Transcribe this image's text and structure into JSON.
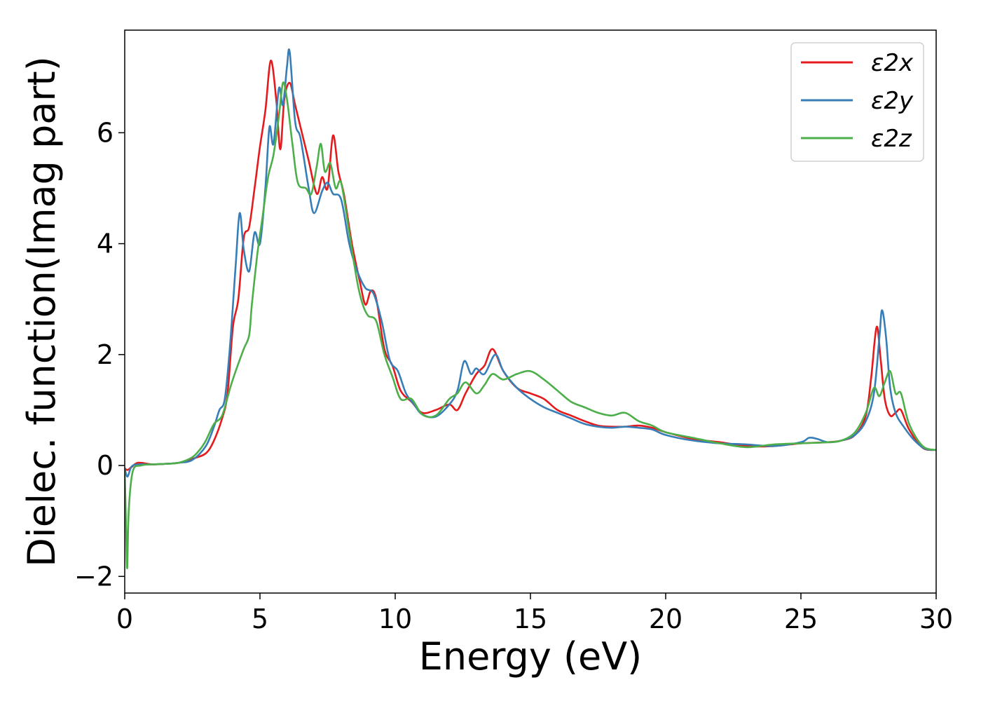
{
  "chart_data": {
    "type": "line",
    "title": "",
    "xlabel": "Energy (eV)",
    "ylabel": "Dielec. function(Imag part)",
    "xlim": [
      0,
      30
    ],
    "ylim": [
      -2.3,
      7.85
    ],
    "xticks": [
      0,
      5,
      10,
      15,
      20,
      25,
      30
    ],
    "xtick_labels": [
      "0",
      "5",
      "10",
      "15",
      "20",
      "25",
      "30"
    ],
    "yticks": [
      -2,
      0,
      2,
      4,
      6
    ],
    "ytick_labels": [
      "−2",
      "0",
      "2",
      "4",
      "6"
    ],
    "grid": false,
    "legend_position": "top-right",
    "series": [
      {
        "name": "ε2x",
        "color": "#e41a1c",
        "points": [
          [
            0,
            -0.05
          ],
          [
            0.1,
            -0.08
          ],
          [
            0.25,
            -0.03
          ],
          [
            0.5,
            0.05
          ],
          [
            1.0,
            0.02
          ],
          [
            1.5,
            0.03
          ],
          [
            2.0,
            0.05
          ],
          [
            2.5,
            0.12
          ],
          [
            3.0,
            0.22
          ],
          [
            3.3,
            0.45
          ],
          [
            3.6,
            0.85
          ],
          [
            3.8,
            1.3
          ],
          [
            4.0,
            2.5
          ],
          [
            4.2,
            3.0
          ],
          [
            4.4,
            4.1
          ],
          [
            4.6,
            4.3
          ],
          [
            4.8,
            5.0
          ],
          [
            5.0,
            5.75
          ],
          [
            5.2,
            6.4
          ],
          [
            5.4,
            7.3
          ],
          [
            5.6,
            6.6
          ],
          [
            5.75,
            5.7
          ],
          [
            5.9,
            6.6
          ],
          [
            6.1,
            6.9
          ],
          [
            6.3,
            6.5
          ],
          [
            6.5,
            6.1
          ],
          [
            6.8,
            5.5
          ],
          [
            7.1,
            4.9
          ],
          [
            7.3,
            5.2
          ],
          [
            7.5,
            5.0
          ],
          [
            7.7,
            5.95
          ],
          [
            7.9,
            5.3
          ],
          [
            8.1,
            4.9
          ],
          [
            8.4,
            4.0
          ],
          [
            8.7,
            3.3
          ],
          [
            8.9,
            2.9
          ],
          [
            9.1,
            3.15
          ],
          [
            9.3,
            3.0
          ],
          [
            9.6,
            2.1
          ],
          [
            9.9,
            1.8
          ],
          [
            10.2,
            1.35
          ],
          [
            10.6,
            1.15
          ],
          [
            11.0,
            0.95
          ],
          [
            11.5,
            1.0
          ],
          [
            12.0,
            1.1
          ],
          [
            12.3,
            1.0
          ],
          [
            12.6,
            1.3
          ],
          [
            13.0,
            1.65
          ],
          [
            13.3,
            1.8
          ],
          [
            13.6,
            2.1
          ],
          [
            14.0,
            1.7
          ],
          [
            14.5,
            1.4
          ],
          [
            15.0,
            1.3
          ],
          [
            15.5,
            1.2
          ],
          [
            16.0,
            1.0
          ],
          [
            16.5,
            0.9
          ],
          [
            17.0,
            0.8
          ],
          [
            17.5,
            0.72
          ],
          [
            18.0,
            0.7
          ],
          [
            18.5,
            0.7
          ],
          [
            19.0,
            0.72
          ],
          [
            19.5,
            0.68
          ],
          [
            20.0,
            0.6
          ],
          [
            21.0,
            0.48
          ],
          [
            22.0,
            0.42
          ],
          [
            23.0,
            0.35
          ],
          [
            24.0,
            0.35
          ],
          [
            25.0,
            0.4
          ],
          [
            26.0,
            0.42
          ],
          [
            26.5,
            0.45
          ],
          [
            27.0,
            0.55
          ],
          [
            27.4,
            0.9
          ],
          [
            27.6,
            1.6
          ],
          [
            27.8,
            2.5
          ],
          [
            27.95,
            1.9
          ],
          [
            28.1,
            1.2
          ],
          [
            28.3,
            0.9
          ],
          [
            28.5,
            0.95
          ],
          [
            28.7,
            1.0
          ],
          [
            29.0,
            0.65
          ],
          [
            29.5,
            0.32
          ],
          [
            30.0,
            0.28
          ]
        ]
      },
      {
        "name": "ε2y",
        "color": "#377eb8",
        "points": [
          [
            0,
            -0.05
          ],
          [
            0.1,
            -0.2
          ],
          [
            0.25,
            -0.02
          ],
          [
            0.5,
            0.02
          ],
          [
            1.0,
            0.02
          ],
          [
            1.5,
            0.03
          ],
          [
            2.0,
            0.05
          ],
          [
            2.5,
            0.1
          ],
          [
            3.0,
            0.35
          ],
          [
            3.3,
            0.7
          ],
          [
            3.5,
            1.0
          ],
          [
            3.7,
            1.2
          ],
          [
            3.9,
            2.2
          ],
          [
            4.1,
            3.6
          ],
          [
            4.25,
            4.55
          ],
          [
            4.4,
            3.9
          ],
          [
            4.6,
            3.5
          ],
          [
            4.8,
            4.2
          ],
          [
            5.0,
            4.0
          ],
          [
            5.2,
            5.0
          ],
          [
            5.35,
            6.1
          ],
          [
            5.5,
            5.8
          ],
          [
            5.7,
            6.8
          ],
          [
            5.85,
            6.5
          ],
          [
            6.0,
            7.2
          ],
          [
            6.1,
            7.45
          ],
          [
            6.3,
            6.2
          ],
          [
            6.5,
            5.9
          ],
          [
            6.8,
            5.0
          ],
          [
            7.0,
            4.55
          ],
          [
            7.3,
            4.95
          ],
          [
            7.5,
            5.1
          ],
          [
            7.7,
            4.9
          ],
          [
            8.0,
            4.8
          ],
          [
            8.3,
            4.0
          ],
          [
            8.6,
            3.5
          ],
          [
            8.9,
            3.2
          ],
          [
            9.2,
            3.1
          ],
          [
            9.5,
            2.6
          ],
          [
            9.8,
            1.9
          ],
          [
            10.1,
            1.7
          ],
          [
            10.4,
            1.3
          ],
          [
            10.7,
            1.1
          ],
          [
            11.0,
            0.92
          ],
          [
            11.5,
            0.88
          ],
          [
            12.0,
            1.1
          ],
          [
            12.3,
            1.35
          ],
          [
            12.55,
            1.88
          ],
          [
            12.8,
            1.65
          ],
          [
            13.0,
            1.75
          ],
          [
            13.3,
            1.65
          ],
          [
            13.7,
            2.0
          ],
          [
            14.0,
            1.7
          ],
          [
            14.5,
            1.4
          ],
          [
            15.0,
            1.2
          ],
          [
            15.5,
            1.05
          ],
          [
            16.0,
            0.95
          ],
          [
            16.5,
            0.85
          ],
          [
            17.0,
            0.75
          ],
          [
            17.5,
            0.7
          ],
          [
            18.0,
            0.68
          ],
          [
            18.5,
            0.7
          ],
          [
            19.0,
            0.68
          ],
          [
            19.5,
            0.65
          ],
          [
            20.0,
            0.55
          ],
          [
            21.0,
            0.45
          ],
          [
            22.0,
            0.4
          ],
          [
            23.0,
            0.38
          ],
          [
            24.0,
            0.35
          ],
          [
            25.0,
            0.42
          ],
          [
            25.3,
            0.5
          ],
          [
            25.6,
            0.48
          ],
          [
            26.0,
            0.42
          ],
          [
            26.5,
            0.45
          ],
          [
            27.0,
            0.55
          ],
          [
            27.4,
            0.8
          ],
          [
            27.7,
            1.3
          ],
          [
            27.9,
            2.3
          ],
          [
            28.0,
            2.8
          ],
          [
            28.15,
            2.3
          ],
          [
            28.3,
            1.4
          ],
          [
            28.5,
            0.95
          ],
          [
            28.8,
            0.7
          ],
          [
            29.2,
            0.45
          ],
          [
            29.6,
            0.3
          ],
          [
            30.0,
            0.28
          ]
        ]
      },
      {
        "name": "ε2z",
        "color": "#4daf4a",
        "points": [
          [
            0,
            -0.1
          ],
          [
            0.05,
            -1.1
          ],
          [
            0.09,
            -1.85
          ],
          [
            0.15,
            -0.8
          ],
          [
            0.3,
            -0.1
          ],
          [
            0.6,
            0.0
          ],
          [
            1.0,
            0.02
          ],
          [
            1.5,
            0.03
          ],
          [
            2.0,
            0.05
          ],
          [
            2.5,
            0.15
          ],
          [
            2.8,
            0.3
          ],
          [
            3.0,
            0.45
          ],
          [
            3.3,
            0.75
          ],
          [
            3.6,
            0.9
          ],
          [
            3.9,
            1.4
          ],
          [
            4.1,
            1.7
          ],
          [
            4.4,
            2.1
          ],
          [
            4.6,
            2.35
          ],
          [
            4.7,
            2.9
          ],
          [
            4.9,
            3.8
          ],
          [
            5.1,
            4.5
          ],
          [
            5.3,
            5.2
          ],
          [
            5.5,
            5.6
          ],
          [
            5.7,
            6.3
          ],
          [
            5.85,
            6.9
          ],
          [
            6.0,
            6.6
          ],
          [
            6.2,
            5.8
          ],
          [
            6.4,
            5.1
          ],
          [
            6.7,
            5.0
          ],
          [
            6.9,
            4.9
          ],
          [
            7.1,
            5.4
          ],
          [
            7.25,
            5.8
          ],
          [
            7.4,
            5.3
          ],
          [
            7.6,
            5.45
          ],
          [
            7.8,
            5.0
          ],
          [
            8.0,
            5.1
          ],
          [
            8.3,
            4.2
          ],
          [
            8.6,
            3.3
          ],
          [
            8.8,
            2.9
          ],
          [
            9.0,
            2.7
          ],
          [
            9.3,
            2.6
          ],
          [
            9.6,
            2.0
          ],
          [
            9.9,
            1.6
          ],
          [
            10.2,
            1.2
          ],
          [
            10.6,
            1.2
          ],
          [
            11.0,
            0.92
          ],
          [
            11.5,
            0.9
          ],
          [
            12.0,
            1.2
          ],
          [
            12.3,
            1.3
          ],
          [
            12.6,
            1.5
          ],
          [
            13.0,
            1.3
          ],
          [
            13.3,
            1.45
          ],
          [
            13.6,
            1.65
          ],
          [
            14.0,
            1.55
          ],
          [
            14.5,
            1.65
          ],
          [
            15.0,
            1.7
          ],
          [
            15.5,
            1.55
          ],
          [
            16.0,
            1.35
          ],
          [
            16.5,
            1.15
          ],
          [
            17.0,
            1.05
          ],
          [
            17.5,
            0.95
          ],
          [
            18.0,
            0.9
          ],
          [
            18.5,
            0.95
          ],
          [
            19.0,
            0.8
          ],
          [
            19.5,
            0.72
          ],
          [
            20.0,
            0.6
          ],
          [
            21.0,
            0.5
          ],
          [
            22.0,
            0.4
          ],
          [
            23.0,
            0.33
          ],
          [
            24.0,
            0.38
          ],
          [
            25.0,
            0.4
          ],
          [
            26.0,
            0.42
          ],
          [
            26.5,
            0.45
          ],
          [
            27.0,
            0.6
          ],
          [
            27.4,
            0.95
          ],
          [
            27.7,
            1.4
          ],
          [
            27.9,
            1.25
          ],
          [
            28.1,
            1.5
          ],
          [
            28.3,
            1.7
          ],
          [
            28.5,
            1.3
          ],
          [
            28.7,
            1.3
          ],
          [
            29.0,
            0.75
          ],
          [
            29.5,
            0.35
          ],
          [
            30.0,
            0.28
          ]
        ]
      }
    ]
  }
}
